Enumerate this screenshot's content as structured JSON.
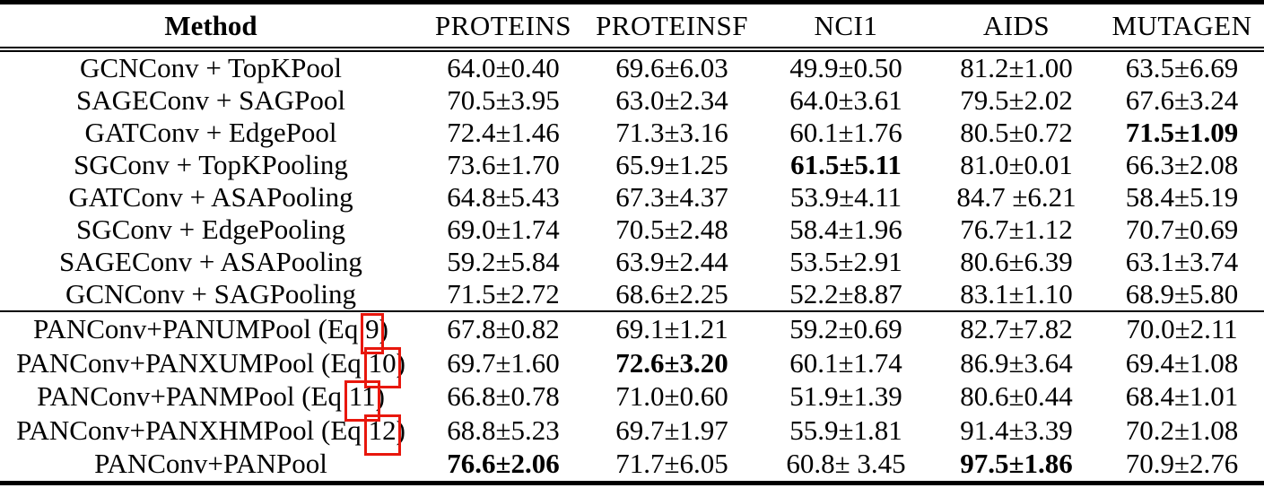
{
  "colors": {
    "background": "#ffffff",
    "text": "#000000",
    "rule": "#000000",
    "link_box_red": "#e8170d"
  },
  "table": {
    "header": [
      "Method",
      "PROTEINS",
      "PROTEINSF",
      "NCI1",
      "AIDS",
      "MUTAGEN"
    ],
    "sections": [
      {
        "rows": [
          {
            "method": "GCNConv + TopKPool",
            "values": [
              "64.0±0.40",
              "69.6±6.03",
              "49.9±0.50",
              "81.2±1.00",
              "63.5±6.69"
            ],
            "bold_cols": []
          },
          {
            "method": "SAGEConv + SAGPool",
            "values": [
              "70.5±3.95",
              "63.0±2.34",
              "64.0±3.61",
              "79.5±2.02",
              "67.6±3.24"
            ],
            "bold_cols": []
          },
          {
            "method": "GATConv + EdgePool",
            "values": [
              "72.4±1.46",
              "71.3±3.16",
              "60.1±1.76",
              "80.5±0.72",
              "71.5±1.09"
            ],
            "bold_cols": [
              4
            ]
          },
          {
            "method": "SGConv + TopKPooling",
            "values": [
              "73.6±1.70",
              "65.9±1.25",
              "61.5±5.11",
              "81.0±0.01",
              "66.3±2.08"
            ],
            "bold_cols": [
              2
            ]
          },
          {
            "method": "GATConv + ASAPooling",
            "values": [
              "64.8±5.43",
              "67.3±4.37",
              "53.9±4.11",
              "84.7 ±6.21",
              "58.4±5.19"
            ],
            "bold_cols": []
          },
          {
            "method": "SGConv + EdgePooling",
            "values": [
              "69.0±1.74",
              "70.5±2.48",
              "58.4±1.96",
              "76.7±1.12",
              "70.7±0.69"
            ],
            "bold_cols": []
          },
          {
            "method": "SAGEConv + ASAPooling",
            "values": [
              "59.2±5.84",
              "63.9±2.44",
              "53.5±2.91",
              "80.6±6.39",
              "63.1±3.74"
            ],
            "bold_cols": []
          },
          {
            "method": "GCNConv + SAGPooling",
            "values": [
              "71.5±2.72",
              "68.6±2.25",
              "52.2±8.87",
              "83.1±1.10",
              "68.9±5.80"
            ],
            "bold_cols": []
          }
        ]
      },
      {
        "rows": [
          {
            "method_prefix": "PANConv+PANUMPool (Eq",
            "eq": "9",
            "method_suffix": ")",
            "values": [
              "67.8±0.82",
              "69.1±1.21",
              "59.2±0.69",
              "82.7±7.82",
              "70.0±2.11"
            ],
            "bold_cols": []
          },
          {
            "method_prefix": "PANConv+PANXUMPool (Eq",
            "eq": "10",
            "method_suffix": ")",
            "values": [
              "69.7±1.60",
              "72.6±3.20",
              "60.1±1.74",
              "86.9±3.64",
              "69.4±1.08"
            ],
            "bold_cols": [
              1
            ]
          },
          {
            "method_prefix": "PANConv+PANMPool (Eq",
            "eq": "11",
            "method_suffix": ")",
            "values": [
              "66.8±0.78",
              "71.0±0.60",
              "51.9±1.39",
              "80.6±0.44",
              "68.4±1.01"
            ],
            "bold_cols": []
          },
          {
            "method_prefix": "PANConv+PANXHMPool (Eq",
            "eq": "12",
            "method_suffix": ")",
            "values": [
              "68.8±5.23",
              "69.7±1.97",
              "55.9±1.81",
              "91.4±3.39",
              "70.2±1.08"
            ],
            "bold_cols": []
          },
          {
            "method": "PANConv+PANPool",
            "values": [
              "76.6±2.06",
              "71.7±6.05",
              "60.8± 3.45",
              "97.5±1.86",
              "70.9±2.76"
            ],
            "bold_cols": [
              0,
              3
            ]
          }
        ]
      }
    ]
  }
}
